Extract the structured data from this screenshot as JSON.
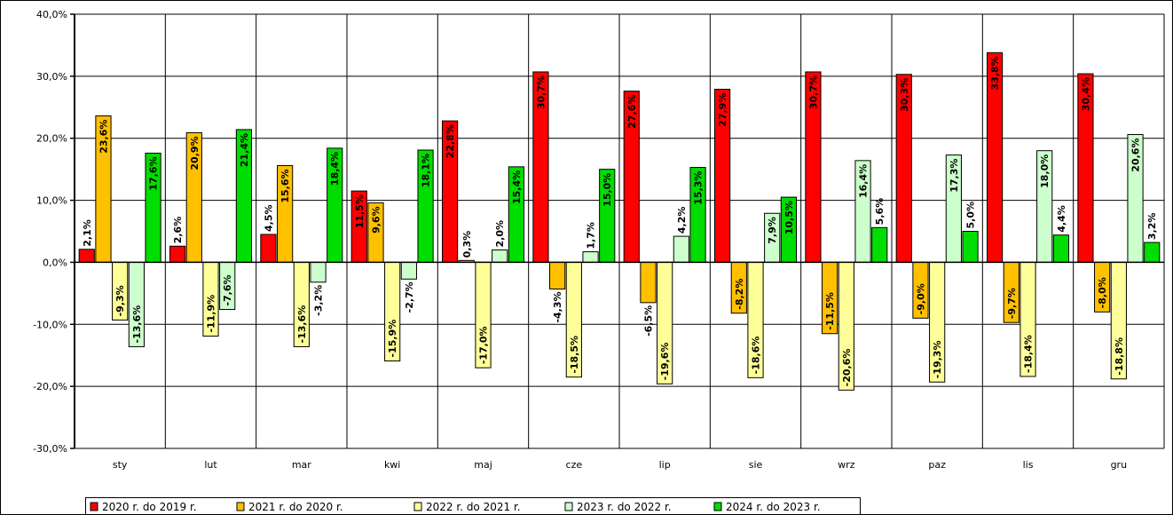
{
  "chart_data": {
    "type": "bar",
    "categories": [
      "sty",
      "lut",
      "mar",
      "kwi",
      "maj",
      "cze",
      "lip",
      "sie",
      "wrz",
      "paz",
      "lis",
      "gru"
    ],
    "series": [
      {
        "name": "2020 r. do 2019 r.",
        "color": "#ff0000",
        "values": [
          2.1,
          2.6,
          4.5,
          11.5,
          22.8,
          30.7,
          27.6,
          27.9,
          30.7,
          30.3,
          33.8,
          30.4
        ],
        "labels": [
          "2,1%",
          "2,6%",
          "4,5%",
          "11,5%",
          "22,8%",
          "30,7%",
          "27,6%",
          "27,9%",
          "30,7%",
          "30,3%",
          "33,8%",
          "30,4%"
        ]
      },
      {
        "name": "2021 r. do 2020 r.",
        "color": "#ffc000",
        "values": [
          23.6,
          20.9,
          15.6,
          9.6,
          0.3,
          -4.3,
          -6.5,
          -8.2,
          -11.5,
          -9.0,
          -9.7,
          -8.0
        ],
        "labels": [
          "23,6%",
          "20,9%",
          "15,6%",
          "9,6%",
          "0,3%",
          "-4,3%",
          "-6,5%",
          "-8,2%",
          "-11,5%",
          "-9,0%",
          "-9,7%",
          "-8,0%"
        ]
      },
      {
        "name": "2022 r. do 2021 r.",
        "color": "#ffff99",
        "values": [
          -9.3,
          -11.9,
          -13.6,
          -15.9,
          -17.0,
          -18.5,
          -19.6,
          -18.6,
          -20.6,
          -19.3,
          -18.4,
          -18.8
        ],
        "labels": [
          "-9,3%",
          "-11,9%",
          "-13,6%",
          "-15,9%",
          "-17,0%",
          "-18,5%",
          "-19,6%",
          "-18,6%",
          "-20,6%",
          "-19,3%",
          "-18,4%",
          "-18,8%"
        ]
      },
      {
        "name": "2023 r. do 2022 r.",
        "color": "#ccffcc",
        "values": [
          -13.6,
          -7.6,
          -3.2,
          -2.7,
          2.0,
          1.7,
          4.2,
          7.9,
          16.4,
          17.3,
          18.0,
          20.6
        ],
        "labels": [
          "-13,6%",
          "-7,6%",
          "-3,2%",
          "-2,7%",
          "2,0%",
          "1,7%",
          "4,2%",
          "7,9%",
          "16,4%",
          "17,3%",
          "18,0%",
          "20,6%"
        ]
      },
      {
        "name": "2024 r. do 2023 r.",
        "color": "#00dd00",
        "values": [
          17.6,
          21.4,
          18.4,
          18.1,
          15.4,
          15.0,
          15.3,
          10.5,
          5.6,
          5.0,
          4.4,
          3.2
        ],
        "labels": [
          "17,6%",
          "21,4%",
          "18,4%",
          "18,1%",
          "15,4%",
          "15,0%",
          "15,3%",
          "10,5%",
          "5,6%",
          "5,0%",
          "4,4%",
          "3,2%"
        ]
      }
    ],
    "ylim": [
      -30,
      40
    ],
    "yticks": [
      -30,
      -20,
      -10,
      0,
      10,
      20,
      30,
      40
    ],
    "ytick_labels": [
      "-30,0%",
      "-20,0%",
      "-10,0%",
      "0,0%",
      "10,0%",
      "20,0%",
      "30,0%",
      "40,0%"
    ],
    "grid": true,
    "legend_position": "bottom-left"
  }
}
